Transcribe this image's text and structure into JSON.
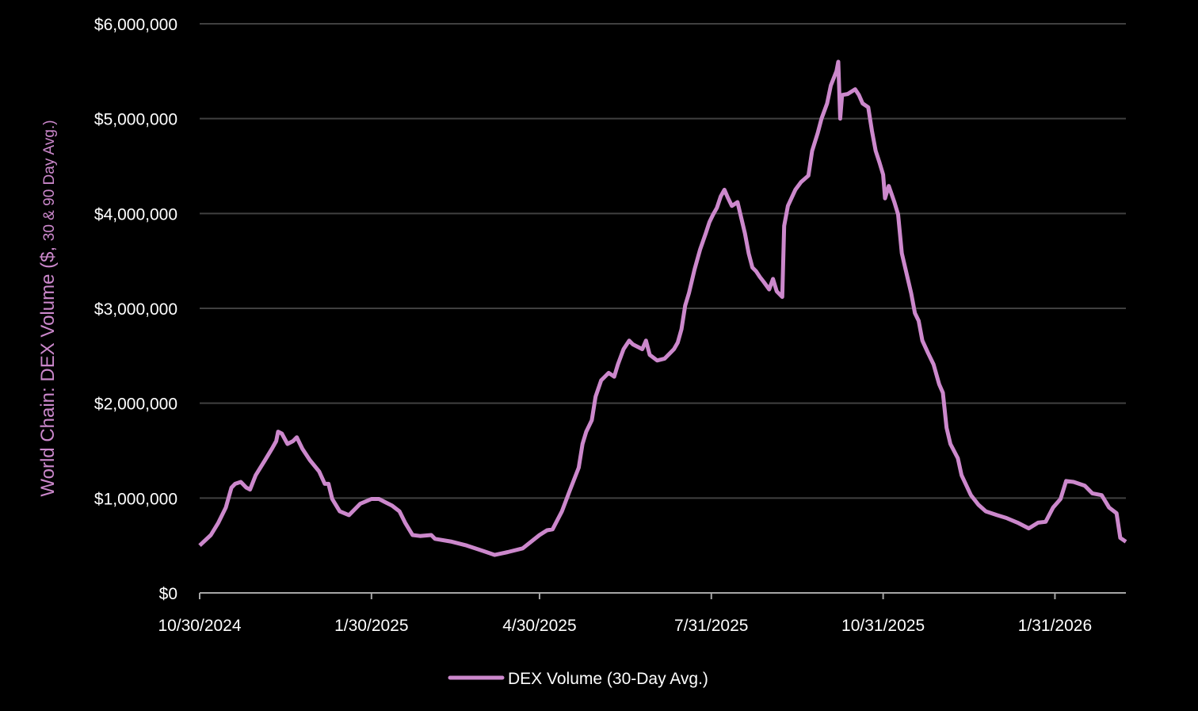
{
  "chart_data": {
    "type": "line",
    "title": "",
    "ylabel_main": "World Chain: DEX Volume ($, ",
    "ylabel_small": "30 & 90 Day Avg.)",
    "xlabel": "",
    "xlim": [
      "2024-10-30",
      "2026-03-10"
    ],
    "ylim": [
      0,
      6000000
    ],
    "grid": "horizontal",
    "legend_position": "bottom",
    "yticks": [
      0,
      1000000,
      2000000,
      3000000,
      4000000,
      5000000,
      6000000
    ],
    "ytick_labels": [
      "$0",
      "$1,000,000",
      "$2,000,000",
      "$3,000,000",
      "$4,000,000",
      "$5,000,000",
      "$6,000,000"
    ],
    "xticks": [
      "2024-10-30",
      "2025-01-30",
      "2025-04-30",
      "2025-07-31",
      "2025-10-31",
      "2026-01-31"
    ],
    "xtick_labels": [
      "10/30/2024",
      "1/30/2025",
      "4/30/2025",
      "7/31/2025",
      "10/31/2025",
      "1/31/2026"
    ],
    "colors": {
      "series": "#cc88cc",
      "background": "#000000",
      "grid": "#404040",
      "axis": "#a6a6a6",
      "text": "#ffffff"
    },
    "series": [
      {
        "name": "DEX Volume (30-Day Avg.)",
        "points": [
          [
            "2024-10-30",
            500000
          ],
          [
            "2024-11-05",
            610000
          ],
          [
            "2024-11-09",
            740000
          ],
          [
            "2024-11-13",
            900000
          ],
          [
            "2024-11-16",
            1110000
          ],
          [
            "2024-11-18",
            1150000
          ],
          [
            "2024-11-21",
            1170000
          ],
          [
            "2024-11-24",
            1110000
          ],
          [
            "2024-11-26",
            1090000
          ],
          [
            "2024-11-29",
            1240000
          ],
          [
            "2024-12-04",
            1400000
          ],
          [
            "2024-12-08",
            1530000
          ],
          [
            "2024-12-10",
            1600000
          ],
          [
            "2024-12-11",
            1700000
          ],
          [
            "2024-12-13",
            1680000
          ],
          [
            "2024-12-16",
            1570000
          ],
          [
            "2024-12-19",
            1600000
          ],
          [
            "2024-12-21",
            1640000
          ],
          [
            "2024-12-24",
            1520000
          ],
          [
            "2024-12-28",
            1400000
          ],
          [
            "2025-01-02",
            1280000
          ],
          [
            "2025-01-05",
            1150000
          ],
          [
            "2025-01-07",
            1150000
          ],
          [
            "2025-01-09",
            990000
          ],
          [
            "2025-01-13",
            860000
          ],
          [
            "2025-01-18",
            820000
          ],
          [
            "2025-01-24",
            940000
          ],
          [
            "2025-01-30",
            990000
          ],
          [
            "2025-02-03",
            990000
          ],
          [
            "2025-02-06",
            960000
          ],
          [
            "2025-02-10",
            920000
          ],
          [
            "2025-02-14",
            860000
          ],
          [
            "2025-02-17",
            740000
          ],
          [
            "2025-02-21",
            610000
          ],
          [
            "2025-02-25",
            600000
          ],
          [
            "2025-03-03",
            610000
          ],
          [
            "2025-03-05",
            570000
          ],
          [
            "2025-03-14",
            540000
          ],
          [
            "2025-03-22",
            500000
          ],
          [
            "2025-03-31",
            440000
          ],
          [
            "2025-04-06",
            400000
          ],
          [
            "2025-04-13",
            430000
          ],
          [
            "2025-04-21",
            470000
          ],
          [
            "2025-04-30",
            610000
          ],
          [
            "2025-05-04",
            660000
          ],
          [
            "2025-05-07",
            670000
          ],
          [
            "2025-05-12",
            860000
          ],
          [
            "2025-05-16",
            1070000
          ],
          [
            "2025-05-21",
            1320000
          ],
          [
            "2025-05-23",
            1570000
          ],
          [
            "2025-05-25",
            1700000
          ],
          [
            "2025-05-28",
            1820000
          ],
          [
            "2025-05-30",
            2070000
          ],
          [
            "2025-06-02",
            2240000
          ],
          [
            "2025-06-06",
            2320000
          ],
          [
            "2025-06-09",
            2280000
          ],
          [
            "2025-06-11",
            2410000
          ],
          [
            "2025-06-14",
            2570000
          ],
          [
            "2025-06-17",
            2660000
          ],
          [
            "2025-06-19",
            2620000
          ],
          [
            "2025-06-24",
            2570000
          ],
          [
            "2025-06-26",
            2660000
          ],
          [
            "2025-06-28",
            2510000
          ],
          [
            "2025-07-02",
            2450000
          ],
          [
            "2025-07-06",
            2470000
          ],
          [
            "2025-07-11",
            2570000
          ],
          [
            "2025-07-13",
            2640000
          ],
          [
            "2025-07-15",
            2780000
          ],
          [
            "2025-07-17",
            3030000
          ],
          [
            "2025-07-19",
            3160000
          ],
          [
            "2025-07-22",
            3410000
          ],
          [
            "2025-07-25",
            3620000
          ],
          [
            "2025-07-28",
            3790000
          ],
          [
            "2025-07-30",
            3910000
          ],
          [
            "2025-08-01",
            3990000
          ],
          [
            "2025-08-03",
            4060000
          ],
          [
            "2025-08-05",
            4180000
          ],
          [
            "2025-08-07",
            4250000
          ],
          [
            "2025-08-09",
            4160000
          ],
          [
            "2025-08-11",
            4080000
          ],
          [
            "2025-08-14",
            4120000
          ],
          [
            "2025-08-18",
            3790000
          ],
          [
            "2025-08-20",
            3580000
          ],
          [
            "2025-08-22",
            3430000
          ],
          [
            "2025-08-24",
            3390000
          ],
          [
            "2025-08-26",
            3330000
          ],
          [
            "2025-08-28",
            3280000
          ],
          [
            "2025-08-31",
            3200000
          ],
          [
            "2025-09-02",
            3310000
          ],
          [
            "2025-09-04",
            3180000
          ],
          [
            "2025-09-07",
            3120000
          ],
          [
            "2025-09-08",
            3870000
          ],
          [
            "2025-09-10",
            4080000
          ],
          [
            "2025-09-14",
            4250000
          ],
          [
            "2025-09-17",
            4330000
          ],
          [
            "2025-09-21",
            4400000
          ],
          [
            "2025-09-23",
            4660000
          ],
          [
            "2025-09-26",
            4850000
          ],
          [
            "2025-09-28",
            5000000
          ],
          [
            "2025-10-01",
            5160000
          ],
          [
            "2025-10-03",
            5350000
          ],
          [
            "2025-10-06",
            5500000
          ],
          [
            "2025-10-07",
            5600000
          ],
          [
            "2025-10-08",
            5000000
          ],
          [
            "2025-10-09",
            5250000
          ],
          [
            "2025-10-12",
            5260000
          ],
          [
            "2025-10-16",
            5310000
          ],
          [
            "2025-10-18",
            5250000
          ],
          [
            "2025-10-20",
            5160000
          ],
          [
            "2025-10-23",
            5120000
          ],
          [
            "2025-10-25",
            4870000
          ],
          [
            "2025-10-27",
            4660000
          ],
          [
            "2025-10-29",
            4540000
          ],
          [
            "2025-10-31",
            4410000
          ],
          [
            "2025-11-01",
            4160000
          ],
          [
            "2025-11-03",
            4290000
          ],
          [
            "2025-11-06",
            4120000
          ],
          [
            "2025-11-08",
            3990000
          ],
          [
            "2025-11-10",
            3580000
          ],
          [
            "2025-11-13",
            3330000
          ],
          [
            "2025-11-15",
            3160000
          ],
          [
            "2025-11-17",
            2950000
          ],
          [
            "2025-11-19",
            2870000
          ],
          [
            "2025-11-21",
            2660000
          ],
          [
            "2025-11-24",
            2530000
          ],
          [
            "2025-11-27",
            2410000
          ],
          [
            "2025-11-30",
            2200000
          ],
          [
            "2025-12-02",
            2110000
          ],
          [
            "2025-12-04",
            1740000
          ],
          [
            "2025-12-06",
            1570000
          ],
          [
            "2025-12-10",
            1420000
          ],
          [
            "2025-12-12",
            1240000
          ],
          [
            "2025-12-17",
            1030000
          ],
          [
            "2025-12-21",
            930000
          ],
          [
            "2025-12-25",
            860000
          ],
          [
            "2025-12-31",
            820000
          ],
          [
            "2026-01-05",
            790000
          ],
          [
            "2026-01-11",
            740000
          ],
          [
            "2026-01-17",
            680000
          ],
          [
            "2026-01-22",
            740000
          ],
          [
            "2026-01-26",
            750000
          ],
          [
            "2026-01-30",
            900000
          ],
          [
            "2026-02-03",
            990000
          ],
          [
            "2026-02-06",
            1180000
          ],
          [
            "2026-02-10",
            1170000
          ],
          [
            "2026-02-16",
            1130000
          ],
          [
            "2026-02-20",
            1050000
          ],
          [
            "2026-02-25",
            1030000
          ],
          [
            "2026-03-01",
            900000
          ],
          [
            "2026-03-05",
            840000
          ],
          [
            "2026-03-07",
            580000
          ],
          [
            "2026-03-10",
            540000
          ]
        ]
      }
    ]
  }
}
